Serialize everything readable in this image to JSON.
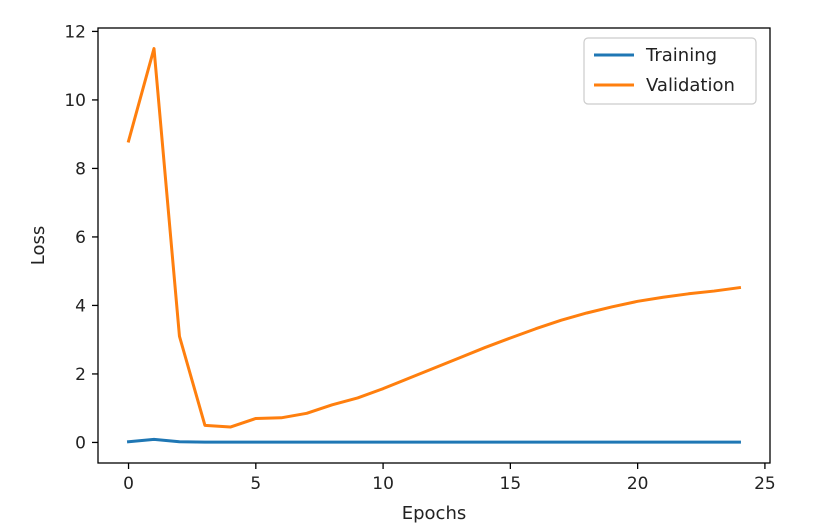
{
  "chart_data": {
    "type": "line",
    "title": "",
    "xlabel": "Epochs",
    "ylabel": "Loss",
    "xlim": [
      -1.2,
      25.2
    ],
    "ylim": [
      -0.6,
      12.1
    ],
    "xticks": [
      0,
      5,
      10,
      15,
      20,
      25
    ],
    "yticks": [
      0,
      2,
      4,
      6,
      8,
      10,
      12
    ],
    "grid": false,
    "legend_position": "top-right",
    "x": [
      0,
      1,
      2,
      3,
      4,
      5,
      6,
      7,
      8,
      9,
      10,
      11,
      12,
      13,
      14,
      15,
      16,
      17,
      18,
      19,
      20,
      21,
      22,
      23,
      24
    ],
    "series": [
      {
        "name": "Training",
        "color": "#1f77b4",
        "values": [
          0.02,
          0.09,
          0.02,
          0.01,
          0.01,
          0.01,
          0.01,
          0.01,
          0.01,
          0.01,
          0.01,
          0.01,
          0.01,
          0.01,
          0.01,
          0.01,
          0.01,
          0.01,
          0.01,
          0.01,
          0.01,
          0.01,
          0.01,
          0.01,
          0.01
        ]
      },
      {
        "name": "Validation",
        "color": "#ff7f0e",
        "values": [
          8.8,
          11.5,
          3.1,
          0.5,
          0.45,
          0.7,
          0.72,
          0.85,
          1.1,
          1.3,
          1.57,
          1.87,
          2.17,
          2.47,
          2.77,
          3.05,
          3.32,
          3.57,
          3.78,
          3.96,
          4.12,
          4.24,
          4.34,
          4.42,
          4.52
        ]
      }
    ]
  }
}
